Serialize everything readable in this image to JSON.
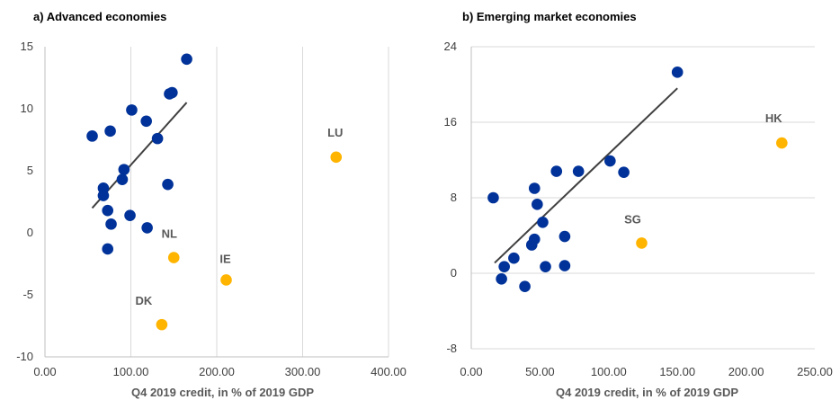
{
  "colors": {
    "main": "#003299",
    "outlier": "#FFB400",
    "trend": "#404040",
    "grid": "#d9d9d9",
    "axis": "#bfbfbf"
  },
  "chart_data": [
    {
      "type": "scatter",
      "title": "a) Advanced economies",
      "xlabel": "Q4 2019 credit, in % of 2019 GDP",
      "ylabel": "",
      "xlim": [
        0,
        400
      ],
      "ylim": [
        -10,
        15
      ],
      "xticks": [
        "0.00",
        "100.00",
        "200.00",
        "300.00",
        "400.00"
      ],
      "yticks": [
        "-10",
        "-5",
        "0",
        "5",
        "10",
        "15"
      ],
      "grid": "vertical",
      "series": [
        {
          "role": "main",
          "points": [
            [
              55,
              7.8
            ],
            [
              76,
              8.2
            ],
            [
              101,
              9.9
            ],
            [
              118,
              9.0
            ],
            [
              131,
              7.6
            ],
            [
              145,
              11.2
            ],
            [
              148,
              11.3
            ],
            [
              165,
              14.0
            ],
            [
              92,
              5.1
            ],
            [
              90,
              4.3
            ],
            [
              68,
              3.6
            ],
            [
              68,
              3.0
            ],
            [
              73,
              1.8
            ],
            [
              77,
              0.7
            ],
            [
              99,
              1.4
            ],
            [
              119,
              0.4
            ],
            [
              73,
              -1.3
            ],
            [
              143,
              3.9
            ]
          ]
        },
        {
          "role": "outlier",
          "points": [
            {
              "x": 150,
              "y": -2.0,
              "label": "NL"
            },
            {
              "x": 211,
              "y": -3.8,
              "label": "IE"
            },
            {
              "x": 136,
              "y": -7.4,
              "label": "DK"
            },
            {
              "x": 339,
              "y": 6.1,
              "label": "LU"
            }
          ]
        }
      ],
      "trendline": [
        [
          55,
          2.0
        ],
        [
          165,
          10.5
        ]
      ]
    },
    {
      "type": "scatter",
      "title": "b) Emerging market economies",
      "xlabel": "Q4 2019 credit, in % of 2019 GDP",
      "ylabel": "",
      "xlim": [
        0,
        250
      ],
      "ylim": [
        -8,
        24
      ],
      "xticks": [
        "0.00",
        "50.00",
        "100.00",
        "150.00",
        "200.00",
        "250.00"
      ],
      "yticks": [
        "-8",
        "0",
        "8",
        "16",
        "24"
      ],
      "grid": "horizontal",
      "series": [
        {
          "role": "main",
          "points": [
            [
              16,
              8.0
            ],
            [
              22,
              -0.6
            ],
            [
              24,
              0.7
            ],
            [
              31,
              1.6
            ],
            [
              39,
              -1.4
            ],
            [
              44,
              3.0
            ],
            [
              46,
              3.6
            ],
            [
              46,
              9.0
            ],
            [
              48,
              7.3
            ],
            [
              52,
              5.4
            ],
            [
              54,
              0.7
            ],
            [
              62,
              10.8
            ],
            [
              68,
              3.9
            ],
            [
              68,
              0.8
            ],
            [
              78,
              10.8
            ],
            [
              101,
              11.9
            ],
            [
              111,
              10.7
            ],
            [
              150,
              21.3
            ]
          ]
        },
        {
          "role": "outlier",
          "points": [
            {
              "x": 124,
              "y": 3.2,
              "label": "SG"
            },
            {
              "x": 226,
              "y": 13.8,
              "label": "HK"
            }
          ]
        }
      ],
      "trendline": [
        [
          17,
          1.1
        ],
        [
          150,
          19.6
        ]
      ]
    }
  ]
}
